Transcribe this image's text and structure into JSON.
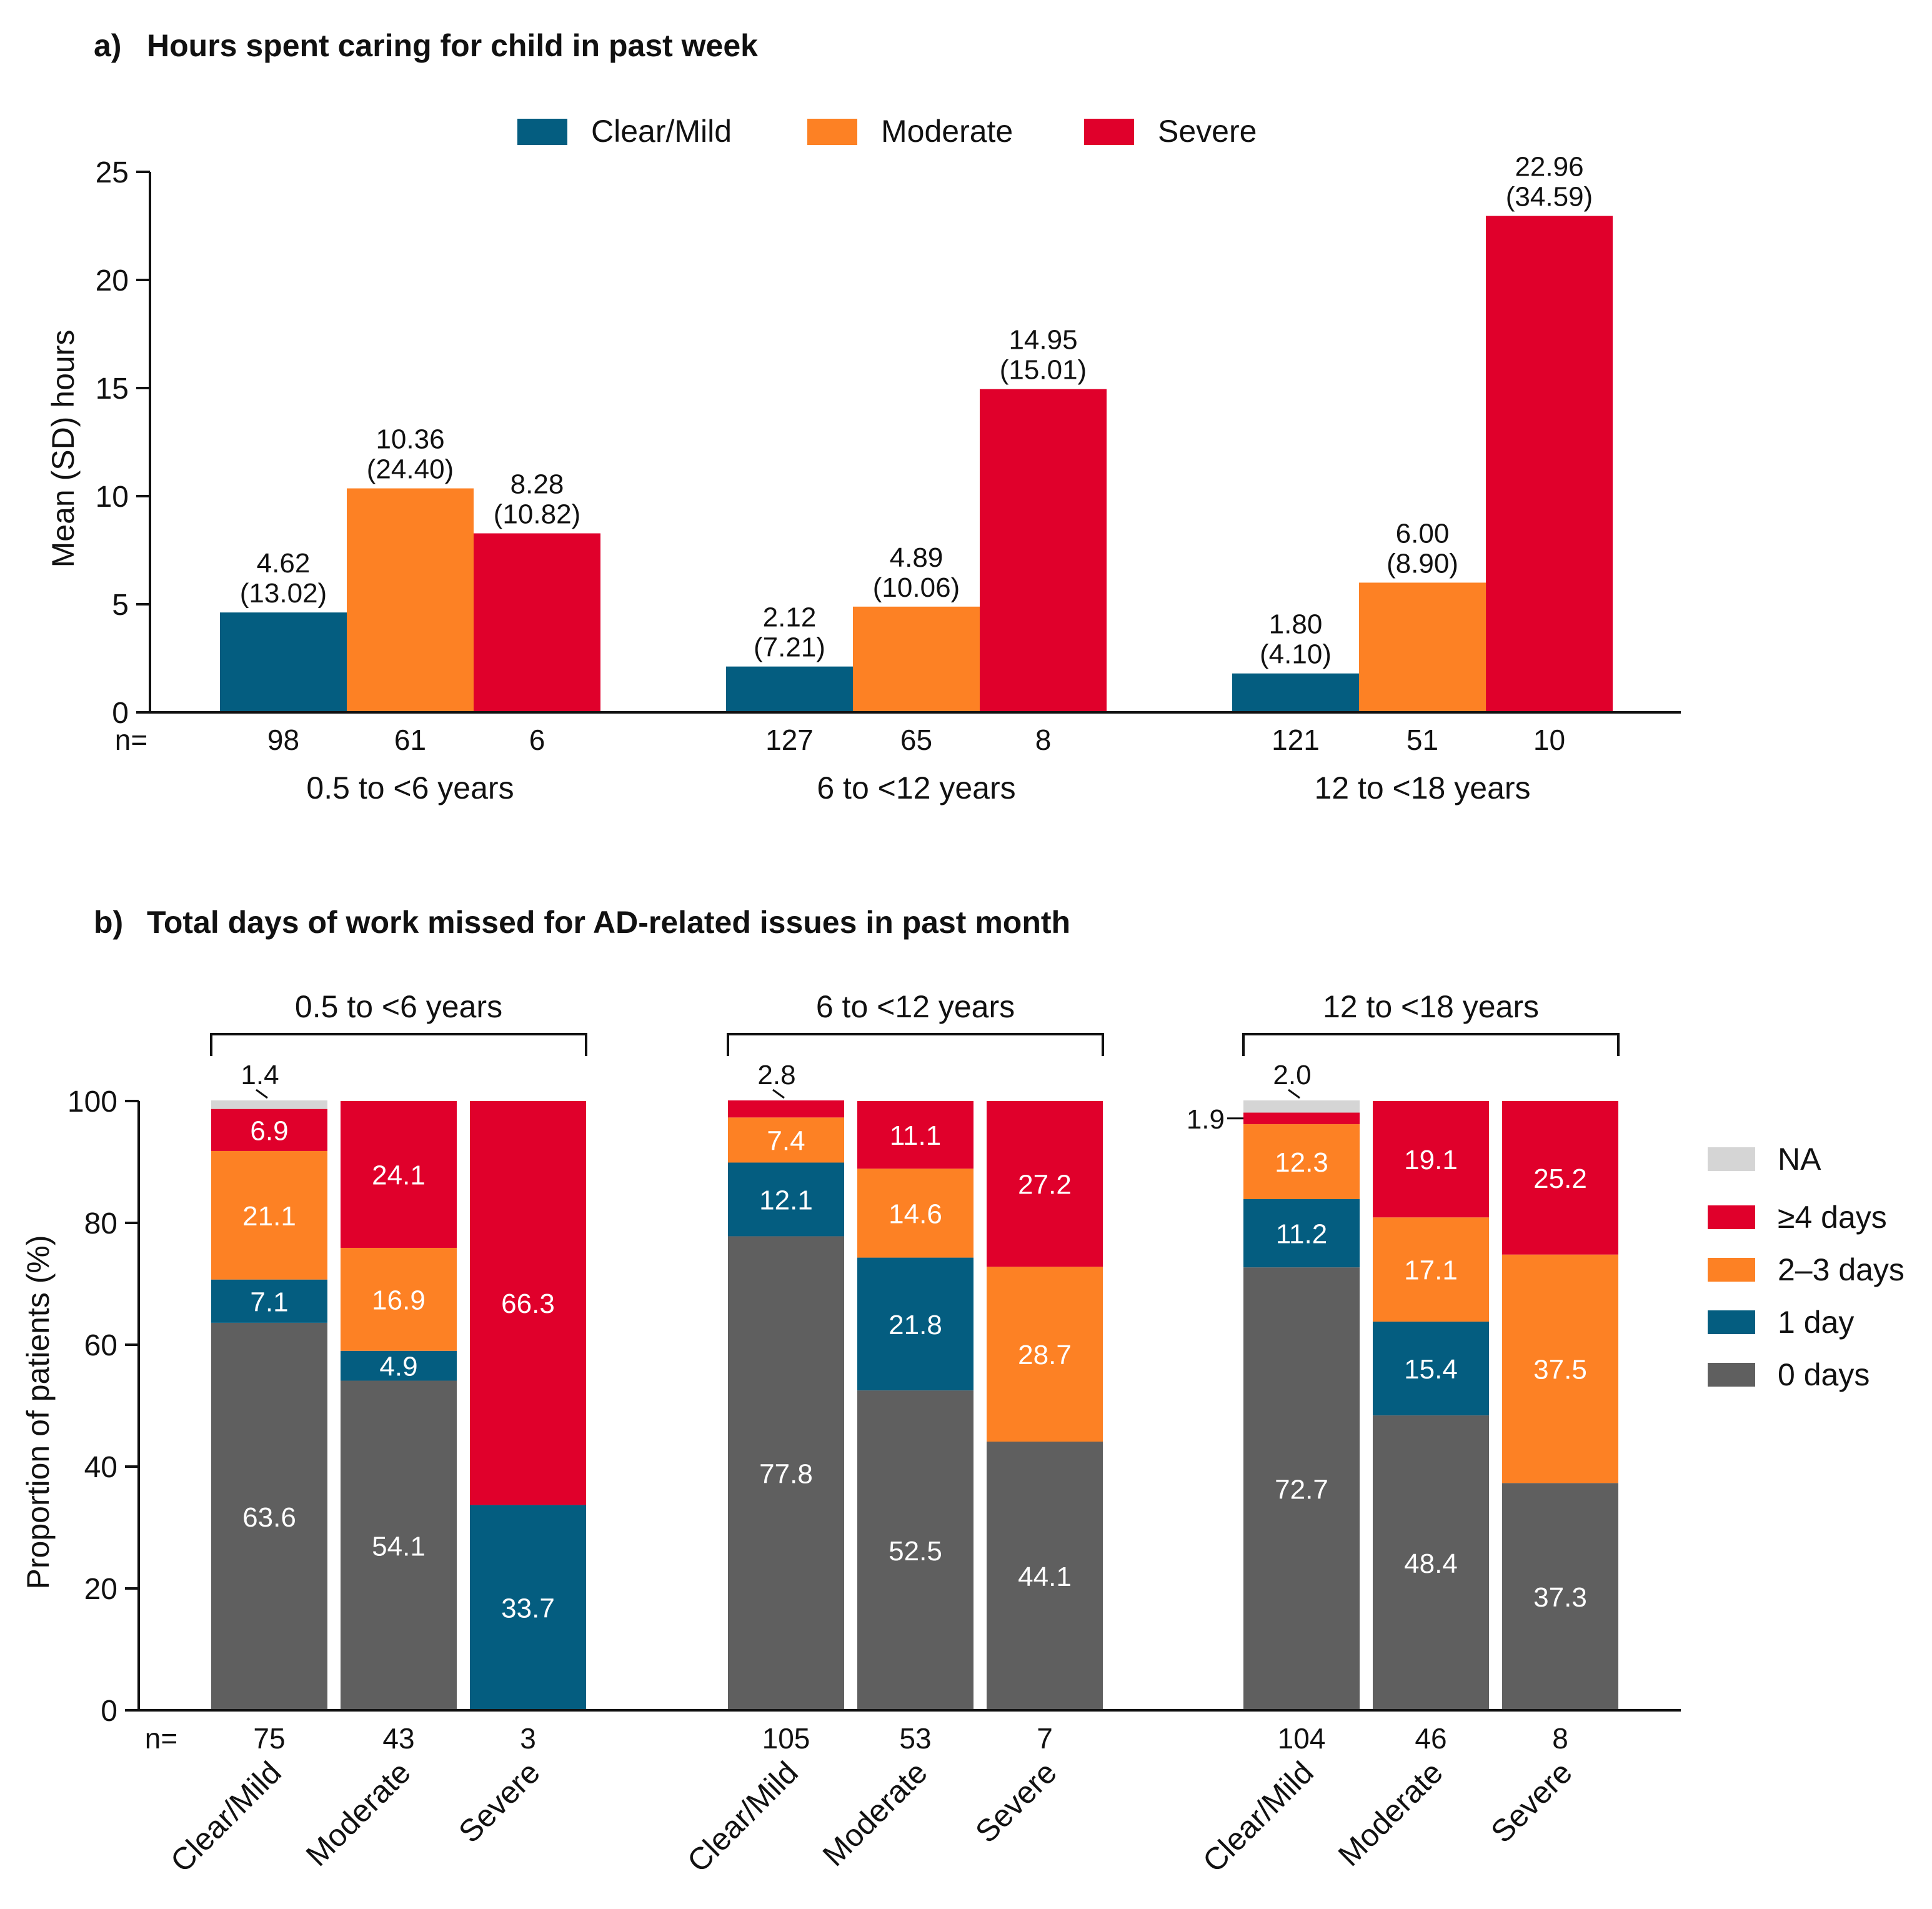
{
  "colors": {
    "clear_mild": "#045d80",
    "moderate": "#fd8124",
    "severe": "#e0002b",
    "na": "#d5d5d5",
    "zero_days": "#5f5f5f"
  },
  "chart_data": [
    {
      "id": "a",
      "type": "bar",
      "panel_letter": "a)",
      "title": "Hours spent caring for child in past week",
      "ylabel": "Mean (SD) hours",
      "ylim": [
        0,
        25
      ],
      "yticks": [
        "0",
        "5",
        "10",
        "15",
        "20",
        "25"
      ],
      "n_prefix": "n=",
      "legend": [
        "Clear/Mild",
        "Moderate",
        "Severe"
      ],
      "groups": [
        {
          "label": "0.5 to <6 years",
          "bars": [
            {
              "series": "Clear/Mild",
              "value": 4.62,
              "mean": "4.62",
              "sd": "(13.02)",
              "n": "98"
            },
            {
              "series": "Moderate",
              "value": 10.36,
              "mean": "10.36",
              "sd": "(24.40)",
              "n": "61"
            },
            {
              "series": "Severe",
              "value": 8.28,
              "mean": "8.28",
              "sd": "(10.82)",
              "n": "6"
            }
          ]
        },
        {
          "label": "6 to <12 years",
          "bars": [
            {
              "series": "Clear/Mild",
              "value": 2.12,
              "mean": "2.12",
              "sd": "(7.21)",
              "n": "127"
            },
            {
              "series": "Moderate",
              "value": 4.89,
              "mean": "4.89",
              "sd": "(10.06)",
              "n": "65"
            },
            {
              "series": "Severe",
              "value": 14.95,
              "mean": "14.95",
              "sd": "(15.01)",
              "n": "8"
            }
          ]
        },
        {
          "label": "12 to <18 years",
          "bars": [
            {
              "series": "Clear/Mild",
              "value": 1.8,
              "mean": "1.80",
              "sd": "(4.10)",
              "n": "121"
            },
            {
              "series": "Moderate",
              "value": 6.0,
              "mean": "6.00",
              "sd": "(8.90)",
              "n": "51"
            },
            {
              "series": "Severe",
              "value": 22.96,
              "mean": "22.96",
              "sd": "(34.59)",
              "n": "10"
            }
          ]
        }
      ]
    },
    {
      "id": "b",
      "type": "stacked-bar",
      "panel_letter": "b)",
      "title": "Total days of work missed for AD-related issues in past month",
      "ylabel": "Proportion of patients (%)",
      "ylim": [
        0,
        100
      ],
      "yticks": [
        "0",
        "20",
        "40",
        "60",
        "80",
        "100"
      ],
      "n_prefix": "n=",
      "legend": [
        "NA",
        "≥4 days",
        "2–3 days",
        "1 day",
        "0 days"
      ],
      "stack_order": [
        "0 days",
        "1 day",
        "2–3 days",
        "≥4 days",
        "NA"
      ],
      "groups": [
        {
          "label": "0.5 to <6 years",
          "bars": [
            {
              "category": "Clear/Mild",
              "n": "75",
              "segments": [
                {
                  "series": "0 days",
                  "value": 63.6,
                  "label": "63.6"
                },
                {
                  "series": "1 day",
                  "value": 7.1,
                  "label": "7.1"
                },
                {
                  "series": "2–3 days",
                  "value": 21.1,
                  "label": "21.1"
                },
                {
                  "series": "≥4 days",
                  "value": 6.9,
                  "label": "6.9"
                },
                {
                  "series": "NA",
                  "value": 1.4,
                  "label": "1.4",
                  "callout": "above"
                }
              ]
            },
            {
              "category": "Moderate",
              "n": "43",
              "segments": [
                {
                  "series": "0 days",
                  "value": 54.1,
                  "label": "54.1"
                },
                {
                  "series": "1 day",
                  "value": 4.9,
                  "label": "4.9"
                },
                {
                  "series": "2–3 days",
                  "value": 16.9,
                  "label": "16.9"
                },
                {
                  "series": "≥4 days",
                  "value": 24.1,
                  "label": "24.1"
                }
              ]
            },
            {
              "category": "Severe",
              "n": "3",
              "segments": [
                {
                  "series": "1 day",
                  "value": 33.7,
                  "label": "33.7"
                },
                {
                  "series": "≥4 days",
                  "value": 66.3,
                  "label": "66.3"
                }
              ]
            }
          ]
        },
        {
          "label": "6 to <12 years",
          "bars": [
            {
              "category": "Clear/Mild",
              "n": "105",
              "segments": [
                {
                  "series": "0 days",
                  "value": 77.8,
                  "label": "77.8"
                },
                {
                  "series": "1 day",
                  "value": 12.1,
                  "label": "12.1"
                },
                {
                  "series": "2–3 days",
                  "value": 7.4,
                  "label": "7.4"
                },
                {
                  "series": "≥4 days",
                  "value": 2.8,
                  "label": "2.8",
                  "callout": "above"
                }
              ]
            },
            {
              "category": "Moderate",
              "n": "53",
              "segments": [
                {
                  "series": "0 days",
                  "value": 52.5,
                  "label": "52.5"
                },
                {
                  "series": "1 day",
                  "value": 21.8,
                  "label": "21.8"
                },
                {
                  "series": "2–3 days",
                  "value": 14.6,
                  "label": "14.6"
                },
                {
                  "series": "≥4 days",
                  "value": 11.1,
                  "label": "11.1"
                }
              ]
            },
            {
              "category": "Severe",
              "n": "7",
              "segments": [
                {
                  "series": "0 days",
                  "value": 44.1,
                  "label": "44.1"
                },
                {
                  "series": "2–3 days",
                  "value": 28.7,
                  "label": "28.7"
                },
                {
                  "series": "≥4 days",
                  "value": 27.2,
                  "label": "27.2"
                }
              ]
            }
          ]
        },
        {
          "label": "12 to <18 years",
          "bars": [
            {
              "category": "Clear/Mild",
              "n": "104",
              "segments": [
                {
                  "series": "0 days",
                  "value": 72.7,
                  "label": "72.7"
                },
                {
                  "series": "1 day",
                  "value": 11.2,
                  "label": "11.2"
                },
                {
                  "series": "2–3 days",
                  "value": 12.3,
                  "label": "12.3"
                },
                {
                  "series": "≥4 days",
                  "value": 1.9,
                  "label": "1.9",
                  "callout": "left"
                },
                {
                  "series": "NA",
                  "value": 2.0,
                  "label": "2.0",
                  "callout": "above"
                }
              ]
            },
            {
              "category": "Moderate",
              "n": "46",
              "segments": [
                {
                  "series": "0 days",
                  "value": 48.4,
                  "label": "48.4"
                },
                {
                  "series": "1 day",
                  "value": 15.4,
                  "label": "15.4"
                },
                {
                  "series": "2–3 days",
                  "value": 17.1,
                  "label": "17.1"
                },
                {
                  "series": "≥4 days",
                  "value": 19.1,
                  "label": "19.1"
                }
              ]
            },
            {
              "category": "Severe",
              "n": "8",
              "segments": [
                {
                  "series": "0 days",
                  "value": 37.3,
                  "label": "37.3"
                },
                {
                  "series": "2–3 days",
                  "value": 37.5,
                  "label": "37.5"
                },
                {
                  "series": "≥4 days",
                  "value": 25.2,
                  "label": "25.2"
                }
              ]
            }
          ]
        }
      ]
    }
  ]
}
